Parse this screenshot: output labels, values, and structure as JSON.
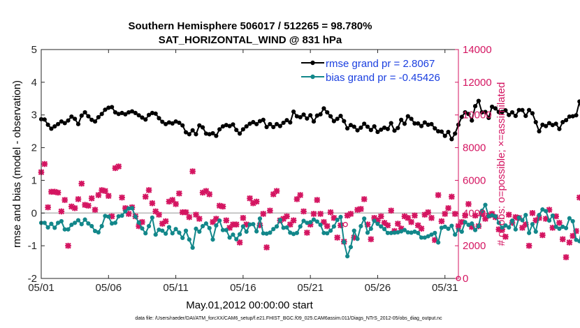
{
  "chart_data": {
    "type": "line",
    "title": "Southern Hemisphere 506017 / 512265 = 98.780%",
    "subtitle": "SAT_HORIZONTAL_WIND @ 831 hPa",
    "xlabel": "May.01,2012 00:00:00 start",
    "ylabel": "rmse and bias (model - observation)",
    "y2label": "# of obs: o=possible; ×=assimilated",
    "footnote": "data file: /Users/raeder/DAI/ATM_forcXX/CAM6_setup/f.e21.FHIST_BGC.f09_025.CAM6assim.011/Diags_NTrS_2012-05/obs_diag_output.nc",
    "xlim": [
      1,
      32
    ],
    "ylim": [
      -2,
      5
    ],
    "y2lim": [
      0,
      14000
    ],
    "x_ticks": [
      1,
      6,
      11,
      16,
      21,
      26,
      31
    ],
    "x_tick_labels": [
      "05/01",
      "05/06",
      "05/11",
      "05/16",
      "05/21",
      "05/26",
      "05/31"
    ],
    "y_ticks": [
      -2,
      -1,
      0,
      1,
      2,
      3,
      4,
      5
    ],
    "y2_ticks": [
      0,
      2000,
      4000,
      6000,
      8000,
      10000,
      12000,
      14000
    ],
    "zero_line": true,
    "colors": {
      "rmse": "#000000",
      "bias": "#12878a",
      "obs": "#d41561",
      "legend_text": "#1a3fe0",
      "zero_line": "#b8b8b8"
    },
    "series": [
      {
        "name": "rmse grand pr = 2.8067",
        "axis": "left",
        "x_start": 1.0,
        "x_step": 0.25,
        "values": [
          2.87,
          2.86,
          2.7,
          2.58,
          2.65,
          2.72,
          2.8,
          2.75,
          2.83,
          2.95,
          2.88,
          2.72,
          2.98,
          3.08,
          2.96,
          2.85,
          2.8,
          2.93,
          3.03,
          3.16,
          3.22,
          3.24,
          3.08,
          3.03,
          3.06,
          3.02,
          3.08,
          3.11,
          3.06,
          2.99,
          2.92,
          2.86,
          3.0,
          3.06,
          3.04,
          2.9,
          2.79,
          2.72,
          2.77,
          2.74,
          2.8,
          2.76,
          2.68,
          2.47,
          2.41,
          2.53,
          2.41,
          2.68,
          2.62,
          2.43,
          2.41,
          2.44,
          2.36,
          2.56,
          2.65,
          2.69,
          2.66,
          2.71,
          2.54,
          2.43,
          2.56,
          2.65,
          2.73,
          2.78,
          2.72,
          2.81,
          2.85,
          2.63,
          2.72,
          2.63,
          2.72,
          2.66,
          2.76,
          2.84,
          2.77,
          3.1,
          2.96,
          2.93,
          3.01,
          2.89,
          2.99,
          2.8,
          2.98,
          3.02,
          3.2,
          3.08,
          2.96,
          2.81,
          2.88,
          2.97,
          2.81,
          2.59,
          2.69,
          2.64,
          2.53,
          2.61,
          2.73,
          2.64,
          2.54,
          2.65,
          2.48,
          2.55,
          2.61,
          2.57,
          2.75,
          2.52,
          2.6,
          2.85,
          2.73,
          2.96,
          2.88,
          2.74,
          2.74,
          2.66,
          2.77,
          2.7,
          2.72,
          2.59,
          2.5,
          2.49,
          2.36,
          2.48,
          2.26,
          2.43,
          2.7,
          2.94,
          3.08,
          3.03,
          2.83,
          3.27,
          3.43,
          3.08,
          3.09,
          2.91,
          3.25,
          3.2,
          3.09,
          3.09,
          3.14,
          3.0,
          3.08,
          2.97,
          3.15,
          3.15,
          2.97,
          3.15,
          3.05,
          2.78,
          2.5,
          2.7,
          2.66,
          2.75,
          2.69,
          2.73,
          2.57,
          2.78,
          2.84,
          2.95,
          2.96,
          2.99,
          3.41,
          2.92,
          2.84,
          3.22,
          2.88
        ]
      },
      {
        "name": "bias grand pr = -0.45426",
        "axis": "left",
        "x_start": 1.0,
        "x_step": 0.25,
        "values": [
          -0.3,
          -0.3,
          -0.44,
          -0.33,
          -0.45,
          -0.3,
          -0.25,
          -0.5,
          -0.5,
          -0.36,
          -0.3,
          -0.22,
          -0.34,
          -0.2,
          -0.32,
          -0.4,
          -0.55,
          -0.59,
          -0.4,
          -0.09,
          -0.11,
          -0.32,
          -0.3,
          -0.1,
          -0.08,
          0.05,
          0.14,
          0.15,
          -0.11,
          -0.29,
          -0.47,
          -0.62,
          -0.4,
          -0.14,
          -0.66,
          -0.51,
          -0.54,
          -0.63,
          -0.43,
          -0.62,
          -0.49,
          -0.6,
          -0.76,
          -0.54,
          -0.81,
          -1.06,
          -0.48,
          -0.57,
          -0.4,
          -0.32,
          -0.46,
          -0.81,
          -0.38,
          -0.23,
          -0.52,
          -0.52,
          -0.75,
          -0.66,
          -0.8,
          -0.65,
          -0.41,
          -0.57,
          -0.35,
          -0.34,
          -0.56,
          -0.17,
          -0.62,
          -0.63,
          -0.6,
          -0.49,
          -0.41,
          -0.21,
          -0.45,
          -0.44,
          -0.6,
          -0.64,
          -0.61,
          -0.41,
          -0.24,
          -0.3,
          -0.28,
          -0.2,
          -0.26,
          -0.36,
          -0.61,
          -0.62,
          -0.54,
          -0.41,
          -0.21,
          -0.12,
          -0.89,
          -1.32,
          -1.04,
          -0.54,
          -0.79,
          -0.4,
          -0.17,
          -0.6,
          -0.48,
          -0.24,
          -0.33,
          -0.41,
          -0.49,
          -0.61,
          -0.61,
          -0.6,
          -0.59,
          -0.56,
          -0.52,
          -0.59,
          -0.6,
          -0.57,
          -0.61,
          -0.75,
          -0.75,
          -0.71,
          -0.66,
          -0.61,
          -0.9,
          -0.45,
          -0.42,
          -0.48,
          -0.39,
          -0.66,
          -0.51,
          -0.57,
          -0.28,
          -0.36,
          -0.32,
          -0.52,
          -0.4,
          0.07,
          0.25,
          -0.1,
          -0.07,
          -0.1,
          -0.3,
          -0.45,
          -0.38,
          -0.44,
          -0.23,
          -0.5,
          -0.14,
          -0.22,
          -0.06,
          -0.61,
          -0.34,
          -0.57,
          -0.06,
          0.11,
          0.06,
          -0.23,
          -0.08,
          -0.42,
          -0.48,
          -0.42,
          -0.46,
          -0.16,
          -0.25,
          -0.82,
          -0.86,
          -0.27,
          -0.3,
          0.19,
          -0.28,
          -0.14,
          -0.37,
          -0.39
        ]
      },
      {
        "name": "obs assimilated",
        "axis": "right",
        "x_start": 1.0,
        "x_step": 0.25,
        "values": [
          6500,
          7000,
          4350,
          5300,
          5300,
          5250,
          4100,
          4800,
          2000,
          4400,
          4300,
          4850,
          5800,
          4500,
          4450,
          4900,
          4200,
          5100,
          5400,
          5350,
          5050,
          3800,
          6750,
          6850,
          4950,
          4300,
          3950,
          4350,
          3800,
          3200,
          3450,
          5000,
          5400,
          4600,
          4100,
          3900,
          3350,
          3500,
          4700,
          4800,
          4550,
          5200,
          4050,
          4050,
          3750,
          6550,
          3900,
          3650,
          5250,
          5350,
          5150,
          3450,
          3650,
          4450,
          4400,
          3550,
          3100,
          3300,
          3300,
          2200,
          3700,
          3300,
          4900,
          4600,
          4700,
          3250,
          3950,
          1900,
          4150,
          5150,
          5350,
          3550,
          3650,
          3800,
          3300,
          3550,
          4850,
          5100,
          4100,
          2800,
          3300,
          3950,
          4800,
          3950,
          3450,
          3200,
          4050,
          3700,
          2500,
          3250,
          2250,
          3850,
          3950,
          2500,
          4200,
          4250,
          4850,
          3300,
          2400,
          3700,
          3550,
          3800,
          3400,
          3250,
          4150,
          2900,
          3350,
          3050,
          3800,
          3700,
          3450,
          3850,
          3250,
          3050,
          3900,
          4050,
          3700,
          2350,
          5100,
          3500,
          3950,
          4300,
          5000,
          3950,
          3200,
          3450,
          3850,
          4550,
          3150,
          3850,
          3200,
          3950,
          3650,
          3850,
          3950,
          3750,
          3000,
          3000,
          2550,
          3900,
          3400,
          3750,
          3700,
          3100,
          3300,
          2000,
          4000,
          3550,
          3700,
          2650,
          3650,
          4200,
          3100,
          3800,
          3400,
          2400,
          1300,
          2200,
          2600,
          2900,
          4950,
          4950,
          5300,
          5300,
          6150,
          5650,
          5500
        ]
      },
      {
        "name": "obs possible",
        "axis": "right",
        "markers": [
          {
            "x": 23.6,
            "value": 3300
          },
          {
            "x": 32.0,
            "value": 0
          }
        ]
      }
    ],
    "legend": {
      "location": "top-right",
      "entries": [
        "rmse grand pr = 2.8067",
        "bias grand pr = -0.45426"
      ]
    }
  }
}
